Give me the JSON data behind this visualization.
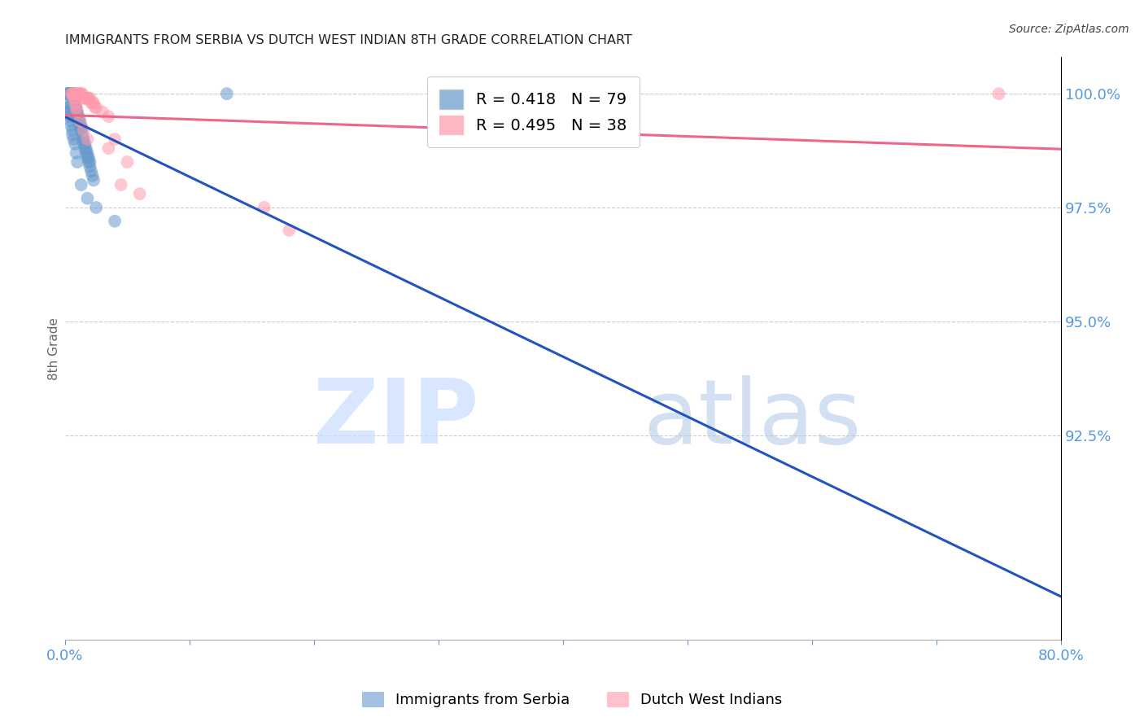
{
  "title": "IMMIGRANTS FROM SERBIA VS DUTCH WEST INDIAN 8TH GRADE CORRELATION CHART",
  "source": "Source: ZipAtlas.com",
  "ylabel": "8th Grade",
  "right_ytick_labels": [
    "100.0%",
    "97.5%",
    "95.0%",
    "92.5%"
  ],
  "right_ytick_values": [
    1.0,
    0.975,
    0.95,
    0.925
  ],
  "xlim": [
    0.0,
    0.8
  ],
  "ylim": [
    0.88,
    1.008
  ],
  "xtick_values": [
    0.0,
    0.1,
    0.2,
    0.3,
    0.4,
    0.5,
    0.6,
    0.7,
    0.8
  ],
  "xtick_labels": [
    "0.0%",
    "",
    "",
    "",
    "",
    "",
    "",
    "",
    "80.0%"
  ],
  "serbia_R": 0.418,
  "serbia_N": 79,
  "dutch_R": 0.495,
  "dutch_N": 38,
  "serbia_color": "#6699CC",
  "dutch_color": "#FF99AA",
  "serbia_line_color": "#2255BB",
  "dutch_line_color": "#EE6688",
  "axis_color": "#5599DD",
  "grid_color": "#CCCCCC",
  "background_color": "#FFFFFF",
  "serbia_x": [
    0.002,
    0.002,
    0.003,
    0.003,
    0.003,
    0.003,
    0.003,
    0.004,
    0.004,
    0.004,
    0.004,
    0.004,
    0.005,
    0.005,
    0.005,
    0.005,
    0.006,
    0.006,
    0.006,
    0.006,
    0.006,
    0.007,
    0.007,
    0.007,
    0.007,
    0.008,
    0.008,
    0.008,
    0.008,
    0.009,
    0.009,
    0.009,
    0.01,
    0.01,
    0.01,
    0.011,
    0.011,
    0.012,
    0.012,
    0.012,
    0.013,
    0.013,
    0.013,
    0.014,
    0.014,
    0.015,
    0.015,
    0.016,
    0.016,
    0.017,
    0.017,
    0.018,
    0.018,
    0.019,
    0.019,
    0.02,
    0.02,
    0.021,
    0.022,
    0.023,
    0.002,
    0.002,
    0.003,
    0.003,
    0.004,
    0.004,
    0.005,
    0.005,
    0.006,
    0.006,
    0.007,
    0.008,
    0.009,
    0.01,
    0.013,
    0.018,
    0.025,
    0.04,
    0.13
  ],
  "serbia_y": [
    1.0,
    1.0,
    1.0,
    1.0,
    1.0,
    1.0,
    1.0,
    1.0,
    1.0,
    1.0,
    1.0,
    1.0,
    1.0,
    1.0,
    1.0,
    1.0,
    1.0,
    1.0,
    1.0,
    1.0,
    0.999,
    0.999,
    0.999,
    0.999,
    0.998,
    0.998,
    0.998,
    0.997,
    0.997,
    0.997,
    0.996,
    0.996,
    0.996,
    0.995,
    0.995,
    0.995,
    0.994,
    0.994,
    0.993,
    0.993,
    0.993,
    0.992,
    0.992,
    0.991,
    0.99,
    0.99,
    0.989,
    0.989,
    0.988,
    0.988,
    0.987,
    0.987,
    0.986,
    0.986,
    0.985,
    0.985,
    0.984,
    0.983,
    0.982,
    0.981,
    0.998,
    0.997,
    0.997,
    0.996,
    0.996,
    0.995,
    0.994,
    0.993,
    0.992,
    0.991,
    0.99,
    0.989,
    0.987,
    0.985,
    0.98,
    0.977,
    0.975,
    0.972,
    1.0
  ],
  "dutch_x": [
    0.005,
    0.006,
    0.007,
    0.008,
    0.009,
    0.01,
    0.011,
    0.012,
    0.013,
    0.014,
    0.015,
    0.016,
    0.017,
    0.018,
    0.019,
    0.02,
    0.021,
    0.022,
    0.023,
    0.024,
    0.025,
    0.03,
    0.035,
    0.04,
    0.05,
    0.06,
    0.007,
    0.008,
    0.009,
    0.01,
    0.012,
    0.015,
    0.018,
    0.035,
    0.045,
    0.16,
    0.18,
    0.75
  ],
  "dutch_y": [
    1.0,
    1.0,
    1.0,
    1.0,
    1.0,
    1.0,
    1.0,
    1.0,
    1.0,
    1.0,
    0.999,
    0.999,
    0.999,
    0.999,
    0.999,
    0.999,
    0.998,
    0.998,
    0.998,
    0.997,
    0.997,
    0.996,
    0.995,
    0.99,
    0.985,
    0.978,
    0.999,
    0.998,
    0.997,
    0.996,
    0.994,
    0.992,
    0.99,
    0.988,
    0.98,
    0.975,
    0.97,
    1.0
  ]
}
